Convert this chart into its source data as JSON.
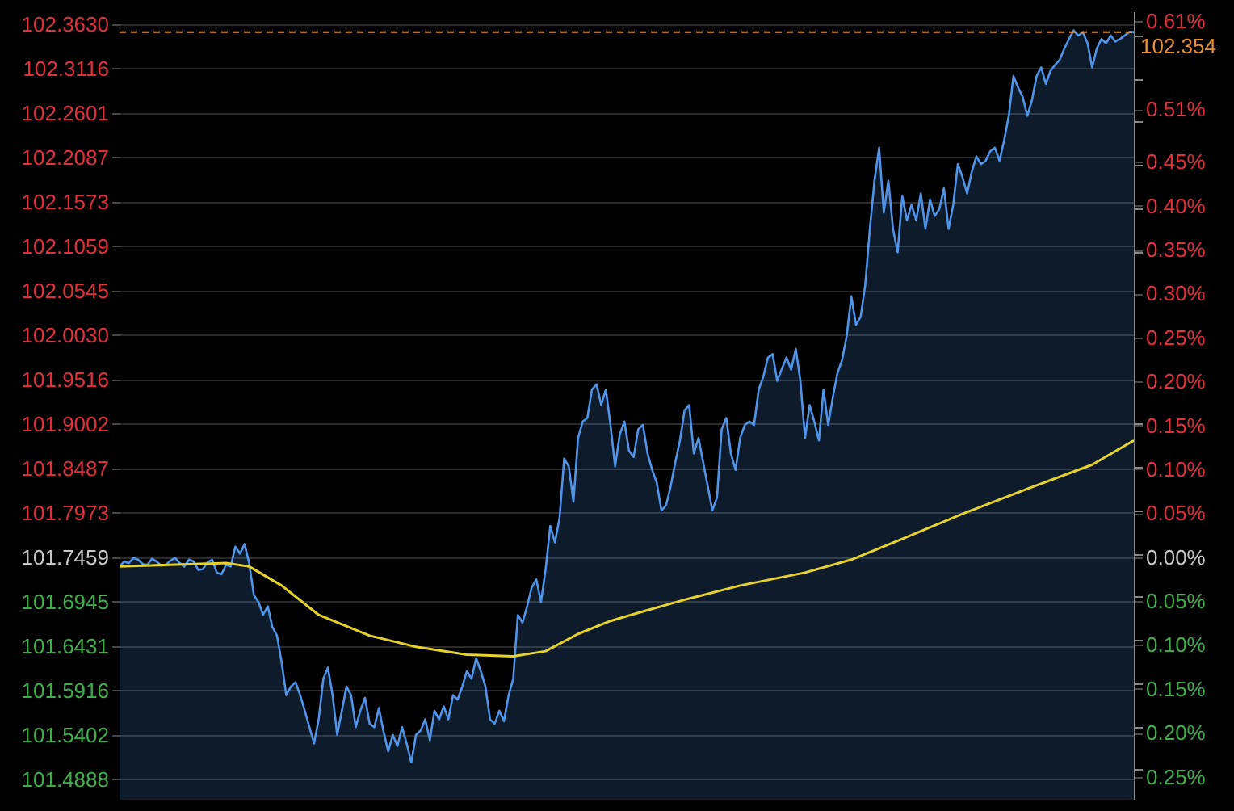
{
  "chart_data": {
    "type": "area",
    "categories": [
      null,
      null,
      null,
      null,
      null,
      null,
      null,
      null,
      null,
      null,
      null,
      null,
      null,
      null,
      null,
      null,
      null,
      null,
      null,
      null,
      null,
      null,
      null,
      null,
      null,
      null,
      null,
      null,
      null,
      null,
      null,
      null,
      null,
      null,
      null,
      null,
      null,
      null,
      null,
      null,
      null,
      null,
      null,
      null,
      null,
      null,
      null,
      null,
      null,
      null,
      null,
      null,
      null,
      null,
      null,
      null,
      null,
      null,
      null,
      null,
      null,
      null,
      null,
      null,
      null,
      null,
      null,
      null,
      null,
      null,
      null,
      null,
      null,
      null,
      null,
      null,
      null,
      null,
      null,
      null,
      null,
      null,
      null,
      null,
      null,
      null,
      null,
      null,
      null,
      null,
      null,
      null,
      null,
      null,
      null,
      null,
      null,
      null,
      null,
      null,
      null,
      null,
      null,
      null,
      null,
      null,
      null,
      null,
      null,
      null,
      null,
      null,
      null,
      null,
      null,
      null,
      null,
      null,
      null,
      null,
      null,
      null,
      null,
      null,
      null,
      null,
      null,
      null,
      null,
      null,
      null,
      null,
      null,
      null,
      null,
      null,
      null,
      null,
      null,
      null,
      null,
      null,
      null,
      null,
      null,
      null,
      null,
      null,
      null,
      null,
      null,
      null,
      null,
      null,
      null,
      null,
      null,
      null,
      null,
      null,
      null,
      null,
      null,
      null,
      null,
      null,
      null,
      null,
      null,
      null,
      null,
      null,
      null,
      null,
      null,
      null,
      null,
      null,
      null,
      null,
      null,
      null,
      null,
      null,
      null,
      null,
      null,
      null,
      null,
      null,
      null,
      null,
      null,
      null,
      null,
      null,
      null,
      null,
      null,
      null,
      null,
      null,
      null,
      null,
      null,
      null,
      null,
      null,
      null,
      null,
      null,
      null,
      null,
      null,
      null,
      null,
      null,
      null,
      null,
      null
    ],
    "series": [
      {
        "color": "#4f94e8",
        "values": [
          101.735,
          101.741,
          101.739,
          101.745,
          101.743,
          101.738,
          101.737,
          101.744,
          101.741,
          101.736,
          101.737,
          101.742,
          101.745,
          101.739,
          101.735,
          101.743,
          101.741,
          101.731,
          101.732,
          101.74,
          101.743,
          101.728,
          101.726,
          101.737,
          101.735,
          101.758,
          101.75,
          101.761,
          101.739,
          101.702,
          101.694,
          101.679,
          101.689,
          101.665,
          101.655,
          101.624,
          101.586,
          101.596,
          101.601,
          101.586,
          101.568,
          101.549,
          101.53,
          101.558,
          101.605,
          101.618,
          101.586,
          101.54,
          101.568,
          101.596,
          101.586,
          101.549,
          101.568,
          101.583,
          101.553,
          101.549,
          101.571,
          101.544,
          101.521,
          101.54,
          101.527,
          101.549,
          101.53,
          101.508,
          101.54,
          101.545,
          101.558,
          101.534,
          101.568,
          101.558,
          101.573,
          101.558,
          101.586,
          101.581,
          101.596,
          101.614,
          101.605,
          101.629,
          101.614,
          101.596,
          101.558,
          101.553,
          101.568,
          101.556,
          101.586,
          101.605,
          101.679,
          101.67,
          101.689,
          101.711,
          101.72,
          101.694,
          101.732,
          101.782,
          101.763,
          101.791,
          101.86,
          101.851,
          101.81,
          101.884,
          101.903,
          101.907,
          101.94,
          101.946,
          101.922,
          101.94,
          101.899,
          101.851,
          101.888,
          101.903,
          101.869,
          101.862,
          101.894,
          101.899,
          101.866,
          101.847,
          101.832,
          101.8,
          101.806,
          101.828,
          101.856,
          101.881,
          101.916,
          101.922,
          101.866,
          101.884,
          101.856,
          101.828,
          101.8,
          101.815,
          101.894,
          101.907,
          101.866,
          101.847,
          101.884,
          101.899,
          101.903,
          101.899,
          101.94,
          101.955,
          101.977,
          101.981,
          101.95,
          101.964,
          101.977,
          101.963,
          101.987,
          101.95,
          101.884,
          101.922,
          101.903,
          101.881,
          101.94,
          101.899,
          101.931,
          101.959,
          101.974,
          102.002,
          102.048,
          102.015,
          102.024,
          102.061,
          102.126,
          102.182,
          102.22,
          102.145,
          102.182,
          102.126,
          102.099,
          102.164,
          102.136,
          102.154,
          102.136,
          102.167,
          102.126,
          102.16,
          102.141,
          102.149,
          102.173,
          102.126,
          102.154,
          102.201,
          102.186,
          102.167,
          102.192,
          102.21,
          102.201,
          102.205,
          102.216,
          102.22,
          102.205,
          102.229,
          102.257,
          102.303,
          102.29,
          102.279,
          102.257,
          102.275,
          102.303,
          102.313,
          102.294,
          102.309,
          102.316,
          102.322,
          102.335,
          102.346,
          102.356,
          102.35,
          102.354,
          102.341,
          102.313,
          102.335,
          102.346,
          102.341,
          102.35,
          102.343,
          102.346,
          102.35,
          102.354,
          102.354
        ]
      },
      {
        "type": "line",
        "color": "#e6d32a",
        "values": [
          101.735,
          null,
          null,
          null,
          null,
          null,
          null,
          null,
          null,
          null,
          null,
          null,
          null,
          null,
          null,
          null,
          null,
          null,
          null,
          null,
          null,
          null,
          null,
          101.739,
          null,
          null,
          null,
          null,
          101.735,
          null,
          null,
          null,
          null,
          null,
          null,
          101.713,
          null,
          null,
          null,
          null,
          null,
          null,
          null,
          101.679,
          null,
          null,
          null,
          null,
          null,
          null,
          null,
          null,
          null,
          null,
          101.655,
          null,
          null,
          null,
          null,
          null,
          null,
          null,
          null,
          null,
          101.642,
          null,
          null,
          null,
          null,
          null,
          null,
          null,
          null,
          null,
          null,
          101.633,
          null,
          null,
          null,
          null,
          null,
          null,
          null,
          null,
          null,
          101.631,
          null,
          null,
          null,
          null,
          null,
          null,
          101.637,
          null,
          null,
          null,
          null,
          null,
          null,
          101.657,
          null,
          null,
          null,
          null,
          null,
          null,
          101.672,
          null,
          null,
          null,
          null,
          null,
          null,
          101.683,
          null,
          null,
          null,
          null,
          null,
          null,
          null,
          null,
          null,
          101.698,
          null,
          null,
          null,
          null,
          null,
          null,
          null,
          null,
          null,
          null,
          101.713,
          null,
          null,
          null,
          null,
          null,
          null,
          null,
          null,
          null,
          null,
          null,
          null,
          null,
          101.728,
          null,
          null,
          null,
          null,
          null,
          null,
          null,
          null,
          null,
          101.743,
          null,
          null,
          null,
          null,
          null,
          null,
          null,
          null,
          null,
          null,
          101.767,
          null,
          null,
          null,
          null,
          null,
          null,
          null,
          null,
          null,
          null,
          null,
          null,
          101.796,
          null,
          null,
          null,
          null,
          null,
          null,
          null,
          null,
          null,
          null,
          null,
          null,
          null,
          101.825,
          null,
          null,
          null,
          null,
          null,
          null,
          null,
          null,
          null,
          null,
          null,
          null,
          null,
          101.853,
          null,
          null,
          null,
          null,
          null,
          null,
          null,
          null,
          101.881
        ]
      }
    ],
    "ylim": [
      101.465,
      102.378
    ],
    "yticks": [
      {
        "value": 102.363,
        "label": "102.3630"
      },
      102.3116,
      102.2601,
      102.2087,
      102.1573,
      102.1059,
      102.0545,
      {
        "value": 102.003,
        "label": "102.0030"
      },
      101.9516,
      101.9002,
      101.8487,
      101.7973,
      101.7459,
      101.6945,
      101.6431,
      101.5916,
      101.5402,
      101.4888
    ],
    "y2lim": [
      -0.2761,
      0.6213
    ],
    "y2ticks": [
      {
        "value": 0.61,
        "label": "0.61%"
      },
      {
        "value": 0.51,
        "label": "0.51%"
      },
      {
        "value": 0.45,
        "label": "0.45%"
      },
      {
        "value": 0.4,
        "label": "0.40%"
      },
      {
        "value": 0.35,
        "label": "0.35%"
      },
      {
        "value": 0.3,
        "label": "0.30%"
      },
      {
        "value": 0.25,
        "label": "0.25%"
      },
      {
        "value": 0.2,
        "label": "0.20%"
      },
      {
        "value": 0.15,
        "label": "0.15%"
      },
      {
        "value": 0.1,
        "label": "0.10%"
      },
      {
        "value": 0.05,
        "label": "0.05%"
      },
      {
        "value": 0,
        "label": "0.00%"
      },
      {
        "value": -0.05,
        "label": "0.05%"
      },
      {
        "value": -0.1,
        "label": "0.10%"
      },
      {
        "value": -0.15,
        "label": "0.15%"
      },
      {
        "value": -0.2,
        "label": "0.20%"
      },
      {
        "value": -0.25,
        "label": "0.25%"
      }
    ],
    "ref_lines": [
      {
        "axis": "y",
        "value": 102.354,
        "label": "102.354",
        "color": "#e8903a",
        "line_style": "dashed"
      }
    ],
    "grid": "y"
  }
}
